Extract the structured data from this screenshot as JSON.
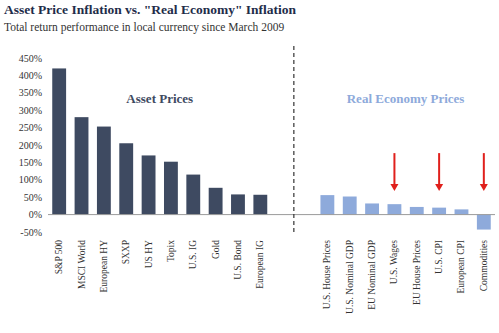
{
  "chart_data": {
    "type": "bar",
    "title": "Asset Price Inflation vs. \"Real Economy\" Inflation",
    "subtitle": "Total return performance in local currency since March 2009",
    "categories": [
      "S&P 500",
      "MSCI World",
      "European HY",
      "SXXP",
      "US HY",
      "Topix",
      "U.S. IG",
      "Gold",
      "U.S. Bond",
      "European IG",
      "U.S. House Prices",
      "U.S. Nominal GDP",
      "EU Nominal GDP",
      "U.S. Wages",
      "EU House Prices",
      "U.S. CPI",
      "European CPI",
      "Commodities"
    ],
    "series": [
      {
        "name": "Asset Prices",
        "color": "#3e4a61",
        "values": [
          420,
          280,
          253,
          205,
          170,
          152,
          115,
          77,
          58,
          57,
          null,
          null,
          null,
          null,
          null,
          null,
          null,
          null
        ]
      },
      {
        "name": "Real Economy Prices",
        "color": "#8eaadb",
        "values": [
          null,
          null,
          null,
          null,
          null,
          null,
          null,
          null,
          null,
          null,
          56,
          52,
          32,
          30,
          22,
          20,
          15,
          -43
        ]
      }
    ],
    "ylim": [
      -50,
      450
    ],
    "yticks": [
      {
        "value": -50,
        "label": "-50%"
      },
      {
        "value": 0,
        "label": "0%"
      },
      {
        "value": 50,
        "label": "50%"
      },
      {
        "value": 100,
        "label": "100%"
      },
      {
        "value": 150,
        "label": "150%"
      },
      {
        "value": 200,
        "label": "200%"
      },
      {
        "value": 250,
        "label": "250%"
      },
      {
        "value": 300,
        "label": "300%"
      },
      {
        "value": 350,
        "label": "350%"
      },
      {
        "value": 400,
        "label": "400%"
      },
      {
        "value": 450,
        "label": "450%"
      }
    ],
    "grid": false
  }
}
